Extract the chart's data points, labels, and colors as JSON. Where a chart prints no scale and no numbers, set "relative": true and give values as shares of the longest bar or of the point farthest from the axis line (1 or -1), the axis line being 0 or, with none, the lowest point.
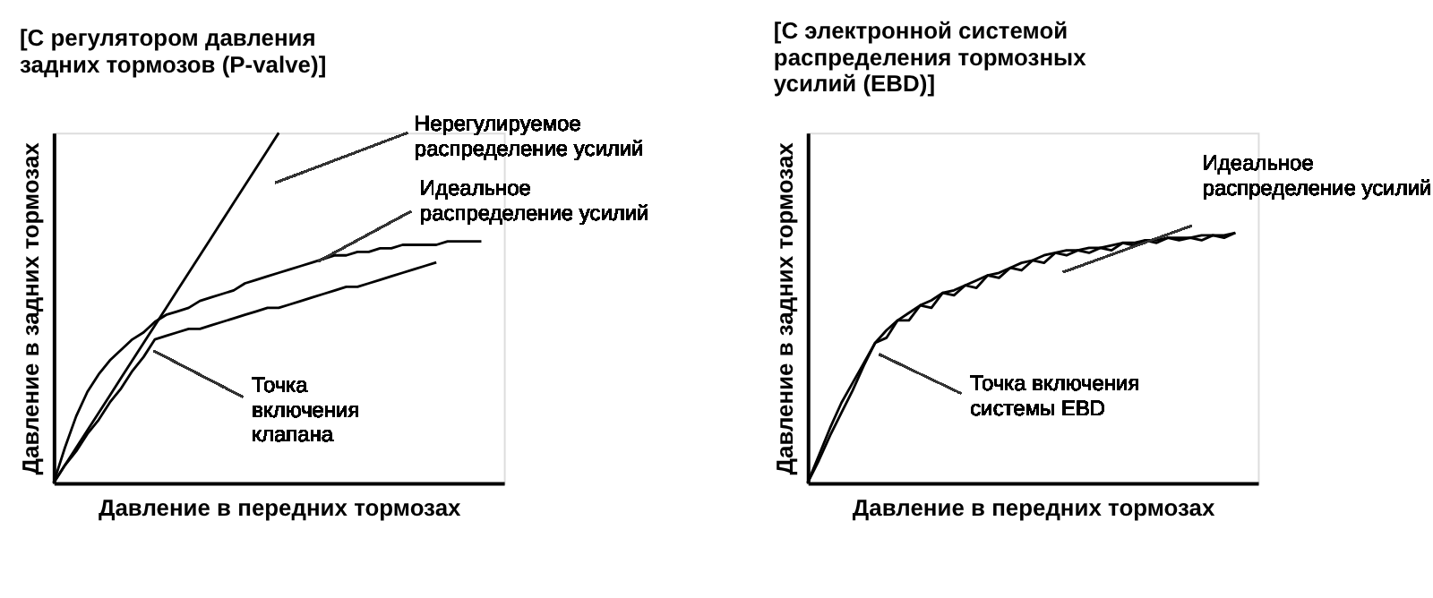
{
  "chart_data": [
    {
      "type": "line",
      "relative": true,
      "title": "[С регулятором давления\nзадних тормозов (P-valve)]",
      "xlabel": "Давление в передних тормозах",
      "ylabel": "Давление в задних тормозах",
      "tick_labels": false,
      "grid": false,
      "legend": false,
      "marker": "none",
      "line_style": "solid",
      "categories": [
        null,
        null,
        null,
        null,
        null,
        null,
        null,
        null,
        null,
        null,
        null,
        null,
        null,
        null,
        null,
        null,
        null,
        null,
        null,
        null,
        null,
        null,
        null,
        null,
        null,
        null,
        null,
        null,
        null,
        null,
        null,
        null,
        null,
        null,
        null,
        null,
        null,
        null,
        null,
        null,
        null
      ],
      "series": [
        {
          "color": "#000000",
          "values": [
            0,
            0.05,
            0.1,
            0.15,
            0.2,
            0.25,
            0.3,
            0.35,
            0.4,
            0.45,
            0.5,
            0.55,
            0.6,
            0.65,
            0.7,
            0.75,
            0.8,
            0.85,
            0.9,
            0.95,
            1.0,
            null,
            null,
            null,
            null,
            null,
            null,
            null,
            null,
            null,
            null,
            null,
            null,
            null,
            null,
            null,
            null,
            null,
            null,
            null,
            null
          ]
        },
        {
          "color": "#000000",
          "values": [
            0,
            0.1,
            0.19,
            0.26,
            0.31,
            0.35,
            0.38,
            0.41,
            0.43,
            0.46,
            0.48,
            0.49,
            0.5,
            0.52,
            0.53,
            0.54,
            0.55,
            0.57,
            0.58,
            0.59,
            0.6,
            0.61,
            0.62,
            0.63,
            0.64,
            0.65,
            0.65,
            0.66,
            0.66,
            0.67,
            0.67,
            0.68,
            0.68,
            0.68,
            0.68,
            0.69,
            0.69,
            0.69,
            0.69,
            null,
            null
          ]
        },
        {
          "color": "#000000",
          "values": [
            0,
            0.05,
            0.09,
            0.14,
            0.18,
            0.23,
            0.27,
            0.32,
            0.36,
            0.41,
            0.42,
            0.43,
            0.44,
            0.44,
            0.45,
            0.46,
            0.47,
            0.48,
            0.49,
            0.5,
            0.5,
            0.51,
            0.52,
            0.53,
            0.54,
            0.55,
            0.56,
            0.56,
            0.57,
            0.58,
            0.59,
            0.6,
            0.61,
            0.62,
            0.63,
            null,
            null,
            null,
            null,
            null,
            null
          ]
        }
      ],
      "annotations": [
        "Нерегулируемое\nраспределение усилий",
        "Идеальное\nраспределение усилий",
        "Точка\nвключения\nклапана"
      ]
    },
    {
      "type": "line",
      "relative": true,
      "title": "[С электронной системой\nраспределения тормозных\nусилий (EBD)]",
      "xlabel": "Давление в передних тормозах",
      "ylabel": "Давление в задних тормозах",
      "tick_labels": false,
      "grid": false,
      "legend": false,
      "marker": "none",
      "line_style": "solid",
      "categories": [
        null,
        null,
        null,
        null,
        null,
        null,
        null,
        null,
        null,
        null,
        null,
        null,
        null,
        null,
        null,
        null,
        null,
        null,
        null,
        null,
        null,
        null,
        null,
        null,
        null,
        null,
        null,
        null,
        null,
        null,
        null,
        null,
        null,
        null,
        null,
        null,
        null,
        null,
        null,
        null,
        null
      ],
      "series": [
        {
          "color": "#000000",
          "values": [
            0,
            0.11,
            0.22,
            0.32,
            0.4,
            0.48,
            0.56,
            0.61,
            0.65,
            0.68,
            0.71,
            0.73,
            0.76,
            0.77,
            0.79,
            0.81,
            0.83,
            0.84,
            0.86,
            0.88,
            0.89,
            0.91,
            0.92,
            0.93,
            0.93,
            0.94,
            0.94,
            0.95,
            0.96,
            0.96,
            0.97,
            0.97,
            0.98,
            0.98,
            0.98,
            0.99,
            0.99,
            0.99,
            1.0,
            null,
            null
          ]
        },
        {
          "color": "#000000",
          "values": [
            0,
            0.09,
            0.19,
            0.28,
            0.37,
            0.47,
            0.56,
            0.58,
            0.65,
            0.65,
            0.71,
            0.7,
            0.76,
            0.75,
            0.79,
            0.78,
            0.83,
            0.82,
            0.86,
            0.85,
            0.89,
            0.88,
            0.92,
            0.91,
            0.93,
            0.92,
            0.94,
            0.93,
            0.96,
            0.95,
            0.97,
            0.96,
            0.98,
            0.97,
            0.98,
            0.97,
            0.99,
            0.98,
            1.0,
            null,
            null
          ]
        }
      ],
      "annotations": [
        "Идеальное\nраспределение усилий",
        "Точка включения\nсистемы EBD"
      ]
    }
  ]
}
